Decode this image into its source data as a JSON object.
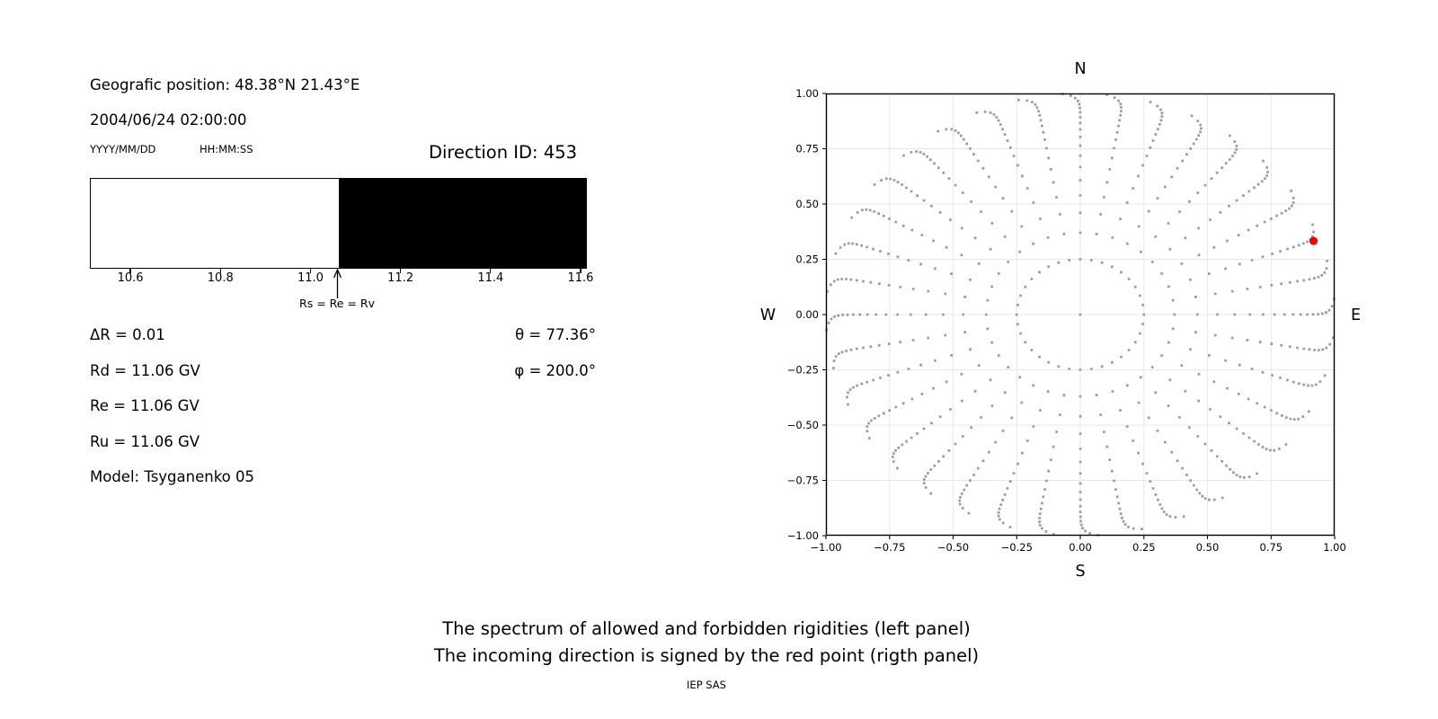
{
  "info_panel": {
    "position": "Geografic position: 48.38°N 21.43°E",
    "datetime": "2004/06/24 02:00:00",
    "date_format": "YYYY/MM/DD",
    "time_format": "HH:MM:SS",
    "direction_id": "Direction ID: 453",
    "delta_r": "ΔR = 0.01",
    "rd": "Rd = 11.06 GV",
    "re": "Re = 11.06 GV",
    "ru": "Ru = 11.06 GV",
    "model": "Model: Tsyganenko 05",
    "theta": "θ = 77.36°",
    "phi": "φ = 200.0°"
  },
  "caption": {
    "line1": "The spectrum of allowed and forbidden rigidities (left panel)",
    "line2": "The incoming direction is signed by the red point (rigth panel)",
    "credit": "IEP SAS"
  },
  "chart_data": [
    {
      "id": "rigidity-spectrum",
      "type": "bar",
      "xlim": [
        10.51,
        11.61
      ],
      "xticks": [
        10.6,
        10.8,
        11.0,
        11.2,
        11.4,
        11.6
      ],
      "xtick_labels": [
        "10.6",
        "10.8",
        "11.0",
        "11.2",
        "11.4",
        "11.6"
      ],
      "boundary_value": 11.06,
      "regions": [
        {
          "start": 10.51,
          "end": 11.06,
          "color": "#ffffff",
          "meaning": "allowed rigidities"
        },
        {
          "start": 11.06,
          "end": 11.61,
          "color": "#000000",
          "meaning": "forbidden rigidities"
        }
      ],
      "annotation": {
        "x": 11.06,
        "text": "Rs = Re = Rv"
      }
    },
    {
      "id": "incoming-direction-map",
      "type": "scatter",
      "title": "N",
      "compass": {
        "top": "N",
        "bottom": "S",
        "left": "W",
        "right": "E"
      },
      "xlim": [
        -1,
        1
      ],
      "ylim": [
        -1,
        1
      ],
      "xticks": [
        -1,
        -0.75,
        -0.5,
        -0.25,
        0,
        0.25,
        0.5,
        0.75,
        1
      ],
      "xtick_labels": [
        "−1.00",
        "−0.75",
        "−0.50",
        "−0.25",
        "0.00",
        "0.25",
        "0.50",
        "0.75",
        "1.00"
      ],
      "ytick_values": [
        1,
        0.75,
        0.5,
        0.25,
        0,
        -0.25,
        -0.5,
        -0.75,
        -1
      ],
      "ytick_labels": [
        "1.00",
        "0.75",
        "0.50",
        "0.25",
        "0.00",
        "−0.25",
        "−0.50",
        "−0.75",
        "−1.00"
      ],
      "grid": true,
      "grid_color": "#e8e8e8",
      "dot_color": "#9b9b9b",
      "pattern": {
        "kind": "radial-spokes",
        "center_dot": true,
        "ring_radius": 0.25,
        "ring_dots": 36,
        "spokes": 36,
        "spoke_step_deg": 10,
        "spoke_r_min": 0.37,
        "spoke_r_max": 1.0,
        "dots_per_spoke": 18,
        "gap_ratio": 0.87,
        "tip_curl_deg": 4
      },
      "red_point": {
        "x": 0.917,
        "y": 0.333,
        "color": "#f40000",
        "meaning": "incoming direction"
      }
    }
  ]
}
